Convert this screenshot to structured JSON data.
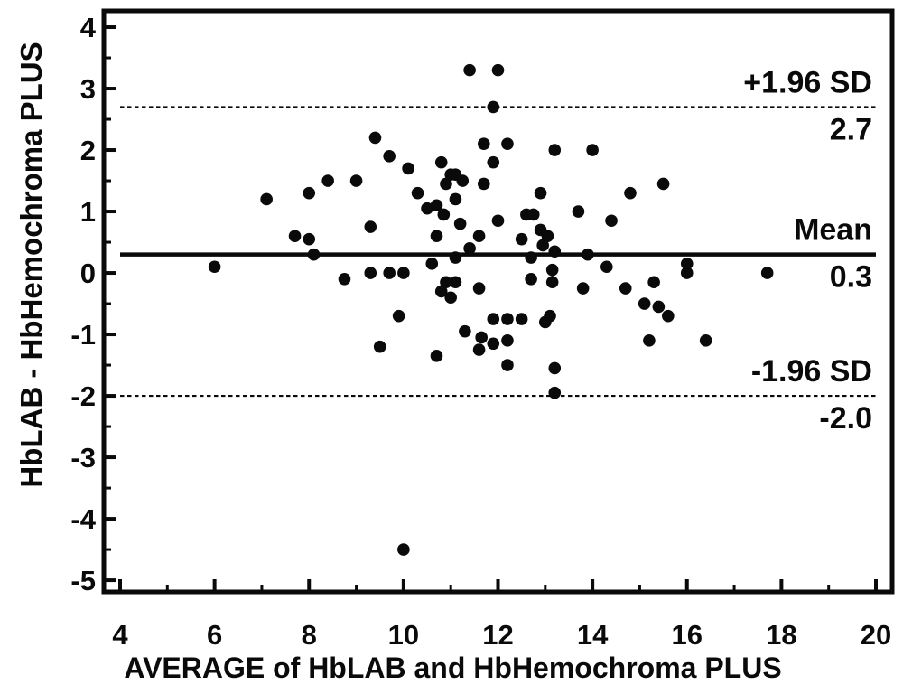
{
  "colors": {
    "ink": "#0a0a0a",
    "background": "#ffffff"
  },
  "chart_data": {
    "type": "scatter",
    "title": "",
    "xlabel": "AVERAGE of HbLAB and HbHemochroma PLUS",
    "ylabel": "HbLAB - HbHemochroma PLUS",
    "xlim": [
      3.656,
      20.344
    ],
    "ylim": [
      -5.19,
      4.265
    ],
    "x_ticks": [
      4,
      6,
      8,
      10,
      12,
      14,
      16,
      18,
      20
    ],
    "y_ticks": [
      -5,
      -4,
      -3,
      -2,
      -1,
      0,
      1,
      2,
      3,
      4
    ],
    "x_minor_ticks": [
      5,
      7,
      9,
      11,
      13,
      15,
      17,
      19
    ],
    "y_minor_ticks": [
      -4.5,
      -3.5,
      -2.5,
      -1.5,
      -0.5,
      0.5,
      1.5,
      2.5,
      3.5
    ],
    "grid": false,
    "legend": null,
    "marker": {
      "shape": "circle",
      "radius_px": 6.8,
      "color": "#0a0a0a"
    },
    "reference_lines": [
      {
        "value": 2.7,
        "style": "dashed",
        "label": "+1.96 SD",
        "value_label": "2.7"
      },
      {
        "value": 0.3,
        "style": "solid",
        "label": "Mean",
        "value_label": "0.3"
      },
      {
        "value": -2.0,
        "style": "dashed",
        "label": "-1.96 SD",
        "value_label": "-2.0"
      }
    ],
    "points": [
      [
        11.4,
        3.3
      ],
      [
        12.0,
        3.3
      ],
      [
        11.9,
        2.7
      ],
      [
        9.4,
        2.2
      ],
      [
        11.7,
        2.1
      ],
      [
        12.2,
        2.1
      ],
      [
        13.2,
        2.0
      ],
      [
        14.0,
        2.0
      ],
      [
        9.7,
        1.9
      ],
      [
        10.8,
        1.8
      ],
      [
        11.9,
        1.8
      ],
      [
        10.1,
        1.7
      ],
      [
        8.4,
        1.5
      ],
      [
        9.0,
        1.5
      ],
      [
        11.0,
        1.6
      ],
      [
        11.1,
        1.6
      ],
      [
        11.25,
        1.5
      ],
      [
        10.9,
        1.45
      ],
      [
        11.7,
        1.45
      ],
      [
        15.5,
        1.45
      ],
      [
        8.0,
        1.3
      ],
      [
        10.3,
        1.3
      ],
      [
        12.9,
        1.3
      ],
      [
        14.8,
        1.3
      ],
      [
        7.1,
        1.2
      ],
      [
        11.1,
        1.2
      ],
      [
        10.5,
        1.05
      ],
      [
        10.7,
        1.1
      ],
      [
        10.85,
        0.95
      ],
      [
        11.2,
        0.8
      ],
      [
        12.0,
        0.85
      ],
      [
        12.6,
        0.95
      ],
      [
        12.75,
        0.95
      ],
      [
        13.7,
        1.0
      ],
      [
        14.4,
        0.85
      ],
      [
        12.9,
        0.7
      ],
      [
        13.05,
        0.6
      ],
      [
        12.95,
        0.45
      ],
      [
        9.3,
        0.75
      ],
      [
        7.7,
        0.6
      ],
      [
        8.0,
        0.55
      ],
      [
        10.7,
        0.6
      ],
      [
        11.6,
        0.6
      ],
      [
        12.5,
        0.55
      ],
      [
        8.1,
        0.3
      ],
      [
        11.4,
        0.4
      ],
      [
        13.2,
        0.35
      ],
      [
        13.9,
        0.3
      ],
      [
        6.0,
        0.1
      ],
      [
        11.1,
        0.25
      ],
      [
        10.6,
        0.15
      ],
      [
        12.7,
        0.25
      ],
      [
        14.3,
        0.1
      ],
      [
        16.0,
        0.15
      ],
      [
        16.0,
        0.0
      ],
      [
        17.7,
        0.0
      ],
      [
        8.75,
        -0.1
      ],
      [
        9.3,
        0.0
      ],
      [
        9.7,
        0.0
      ],
      [
        10.0,
        0.0
      ],
      [
        13.15,
        0.05
      ],
      [
        13.15,
        -0.15
      ],
      [
        10.9,
        -0.15
      ],
      [
        11.1,
        -0.15
      ],
      [
        11.6,
        -0.25
      ],
      [
        12.7,
        -0.1
      ],
      [
        13.8,
        -0.25
      ],
      [
        14.7,
        -0.25
      ],
      [
        15.3,
        -0.15
      ],
      [
        10.8,
        -0.3
      ],
      [
        11.0,
        -0.4
      ],
      [
        15.1,
        -0.5
      ],
      [
        15.4,
        -0.55
      ],
      [
        9.9,
        -0.7
      ],
      [
        15.6,
        -0.7
      ],
      [
        11.9,
        -0.75
      ],
      [
        12.2,
        -0.75
      ],
      [
        12.5,
        -0.75
      ],
      [
        13.0,
        -0.8
      ],
      [
        13.1,
        -0.7
      ],
      [
        11.3,
        -0.95
      ],
      [
        11.65,
        -1.05
      ],
      [
        11.9,
        -1.15
      ],
      [
        11.6,
        -1.25
      ],
      [
        12.2,
        -1.1
      ],
      [
        15.2,
        -1.1
      ],
      [
        16.4,
        -1.1
      ],
      [
        9.5,
        -1.2
      ],
      [
        10.7,
        -1.35
      ],
      [
        12.2,
        -1.5
      ],
      [
        13.2,
        -1.55
      ],
      [
        13.2,
        -1.95
      ],
      [
        10.0,
        -4.5
      ]
    ]
  }
}
